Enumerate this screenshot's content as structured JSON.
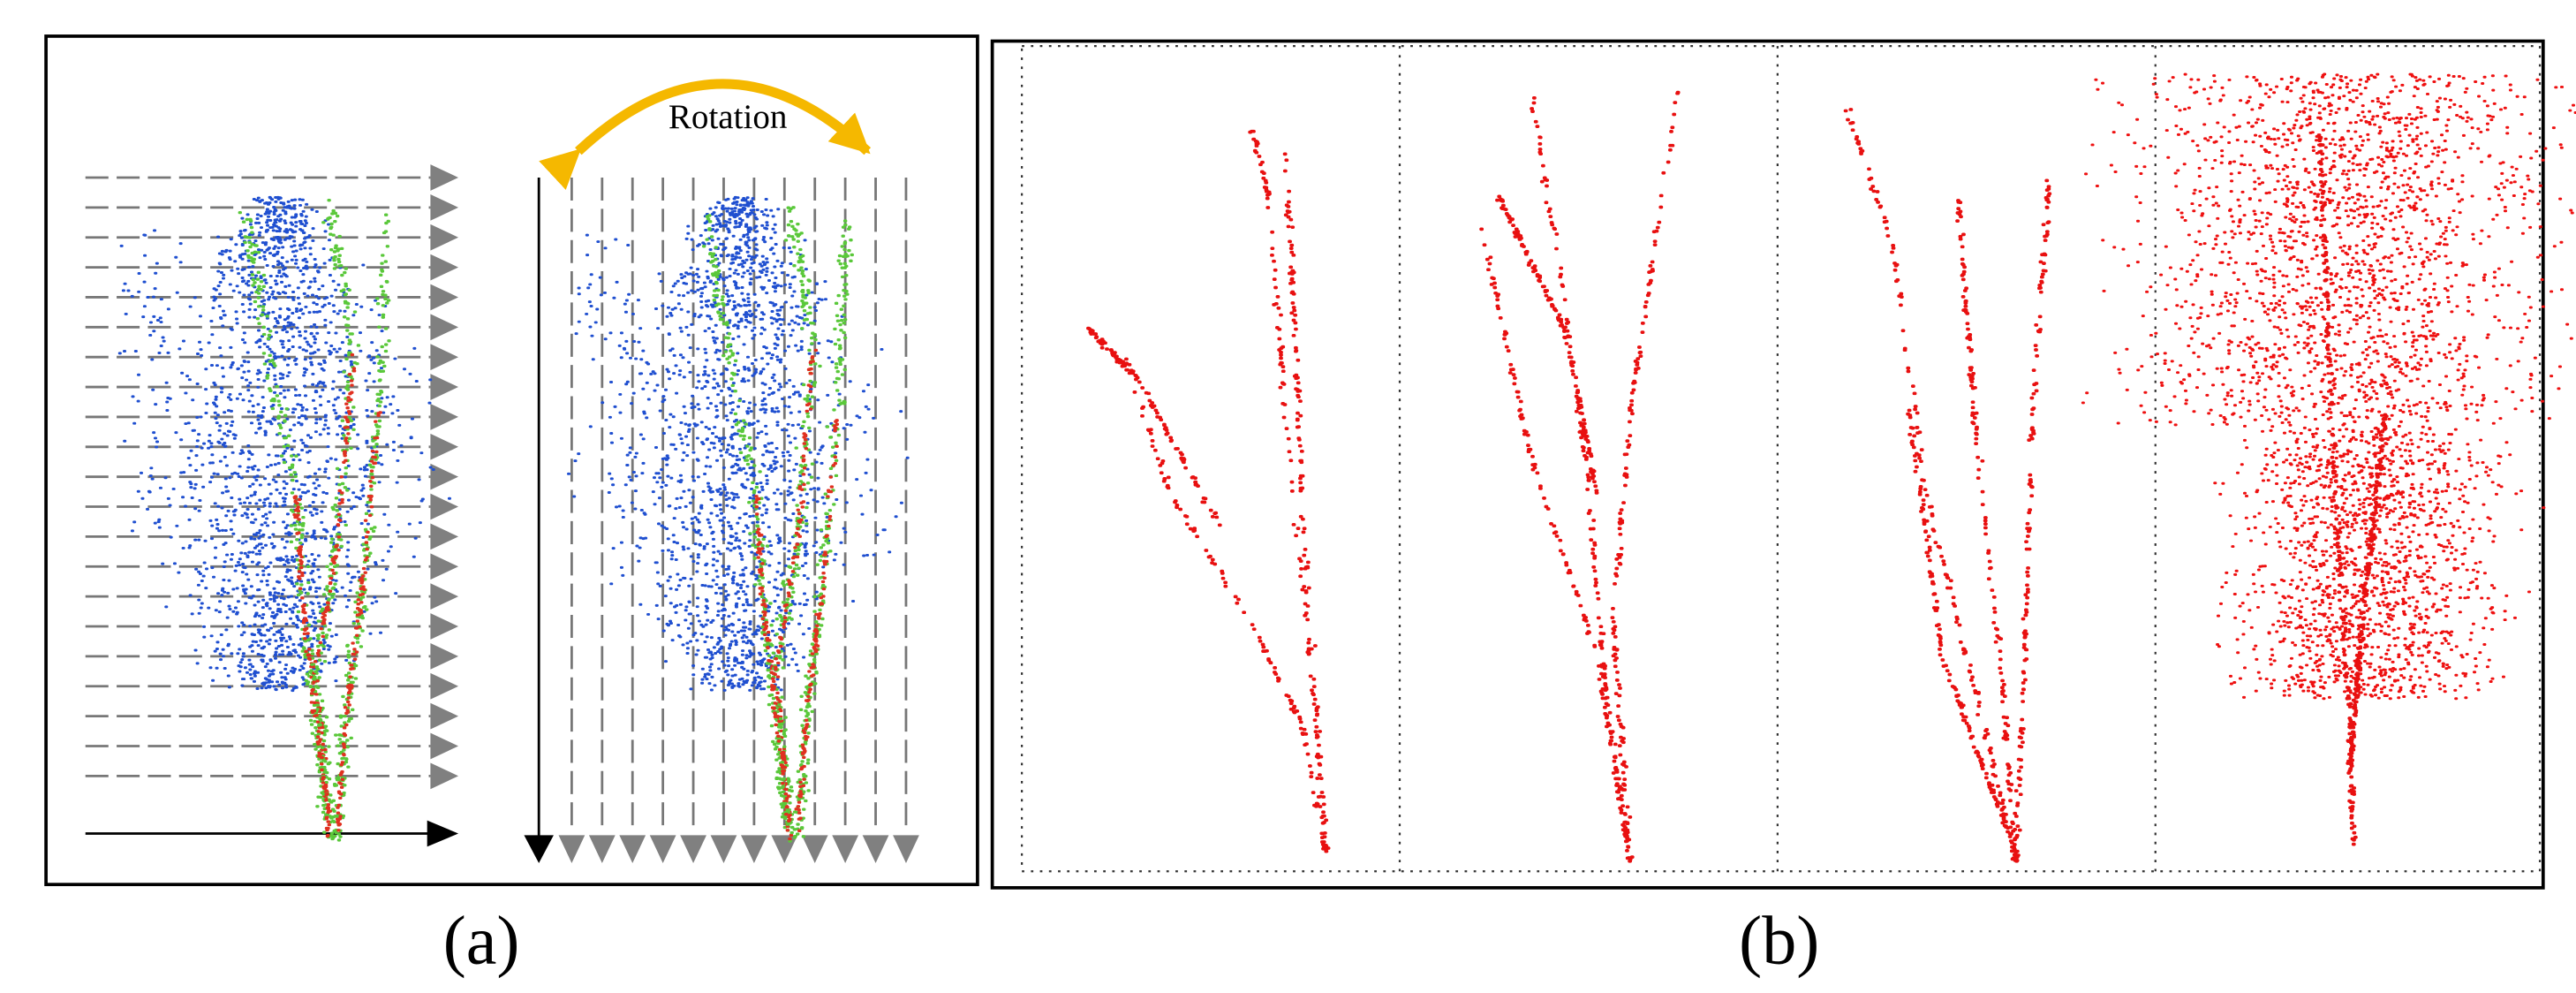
{
  "panel_a": {
    "annotation": "Rotation",
    "caption": "(a)"
  },
  "panel_b": {
    "caption": "(b)"
  }
}
